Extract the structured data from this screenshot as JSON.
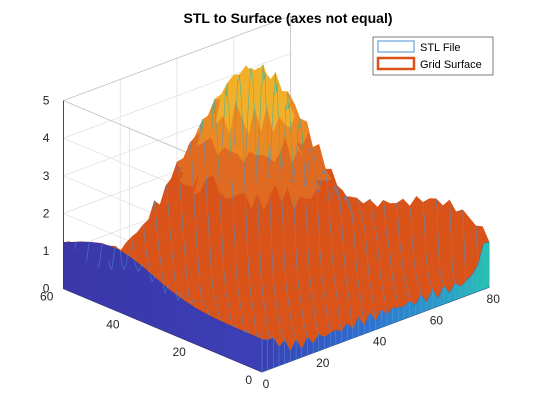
{
  "chart_data": {
    "type": "surface",
    "title": "STL to Surface (axes not equal)",
    "xlabel": "",
    "ylabel": "",
    "zlabel": "",
    "xlim": [
      0,
      80
    ],
    "ylim": [
      0,
      60
    ],
    "zlim": [
      0,
      5
    ],
    "x_ticks": [
      "0",
      "20",
      "40",
      "60",
      "80"
    ],
    "y_ticks": [
      "0",
      "20",
      "40",
      "60"
    ],
    "z_ticks": [
      "0",
      "1",
      "2",
      "3",
      "4",
      "5"
    ],
    "grid": true,
    "box": true,
    "legend_position": "top-right",
    "series": [
      {
        "name": "STL File",
        "kind": "mesh",
        "color": "#4a8fcf"
      },
      {
        "name": "Grid Surface",
        "kind": "surface",
        "color": "#d95319"
      }
    ],
    "approx_peak": {
      "x": 50,
      "y": 45,
      "z": 4.9
    },
    "approx_edge_heights": {
      "y0_edge_z": [
        1.0,
        0.6,
        0.3,
        0.3,
        0.4,
        0.8,
        1.7
      ],
      "x0_edge_z": [
        1.3,
        1.1,
        1.0,
        0.7,
        0.4,
        0.2
      ]
    }
  },
  "colors": {
    "axis": "#262626",
    "grid": "#dcdcdc",
    "surface_orange": "#d95319",
    "mesh_blue": "#4a8fcf",
    "skirt_blue": "#3b3bb0",
    "peak_yellow": "#f2b02a",
    "teal": "#2bb5a8"
  }
}
